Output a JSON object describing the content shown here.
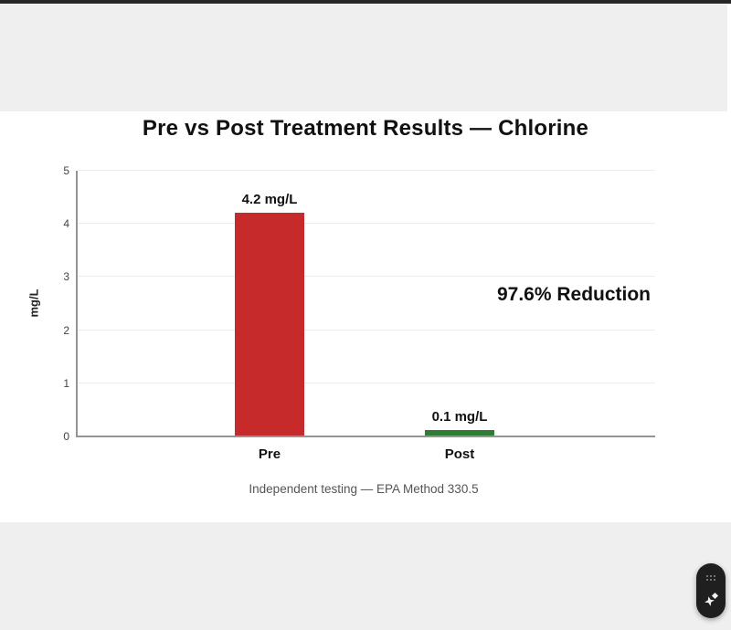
{
  "window": {
    "top_border_color": "#262626",
    "header_bg": "#efefef",
    "footer_bg": "#efefef",
    "content_bg": "#ffffff"
  },
  "chart_data": {
    "type": "bar",
    "title": "Pre vs Post Treatment Results — Chlorine",
    "categories": [
      "Pre",
      "Post"
    ],
    "values": [
      4.2,
      0.1
    ],
    "value_labels": [
      "4.2 mg/L",
      "0.1 mg/L"
    ],
    "bar_colors": [
      "#c62a2a",
      "#2e7d32"
    ],
    "ylabel": "mg/L",
    "xlabel": "",
    "ylim": [
      0,
      5
    ],
    "yticks": [
      0,
      1,
      2,
      3,
      4,
      5
    ],
    "grid": true,
    "legend_position": "none",
    "annotation": "97.6% Reduction",
    "caption": "Independent testing — EPA Method 330.5"
  },
  "widget": {
    "bg": "#1f1f1f",
    "icons": [
      "drag-handle-dots-icon",
      "sparkle-icon"
    ]
  }
}
